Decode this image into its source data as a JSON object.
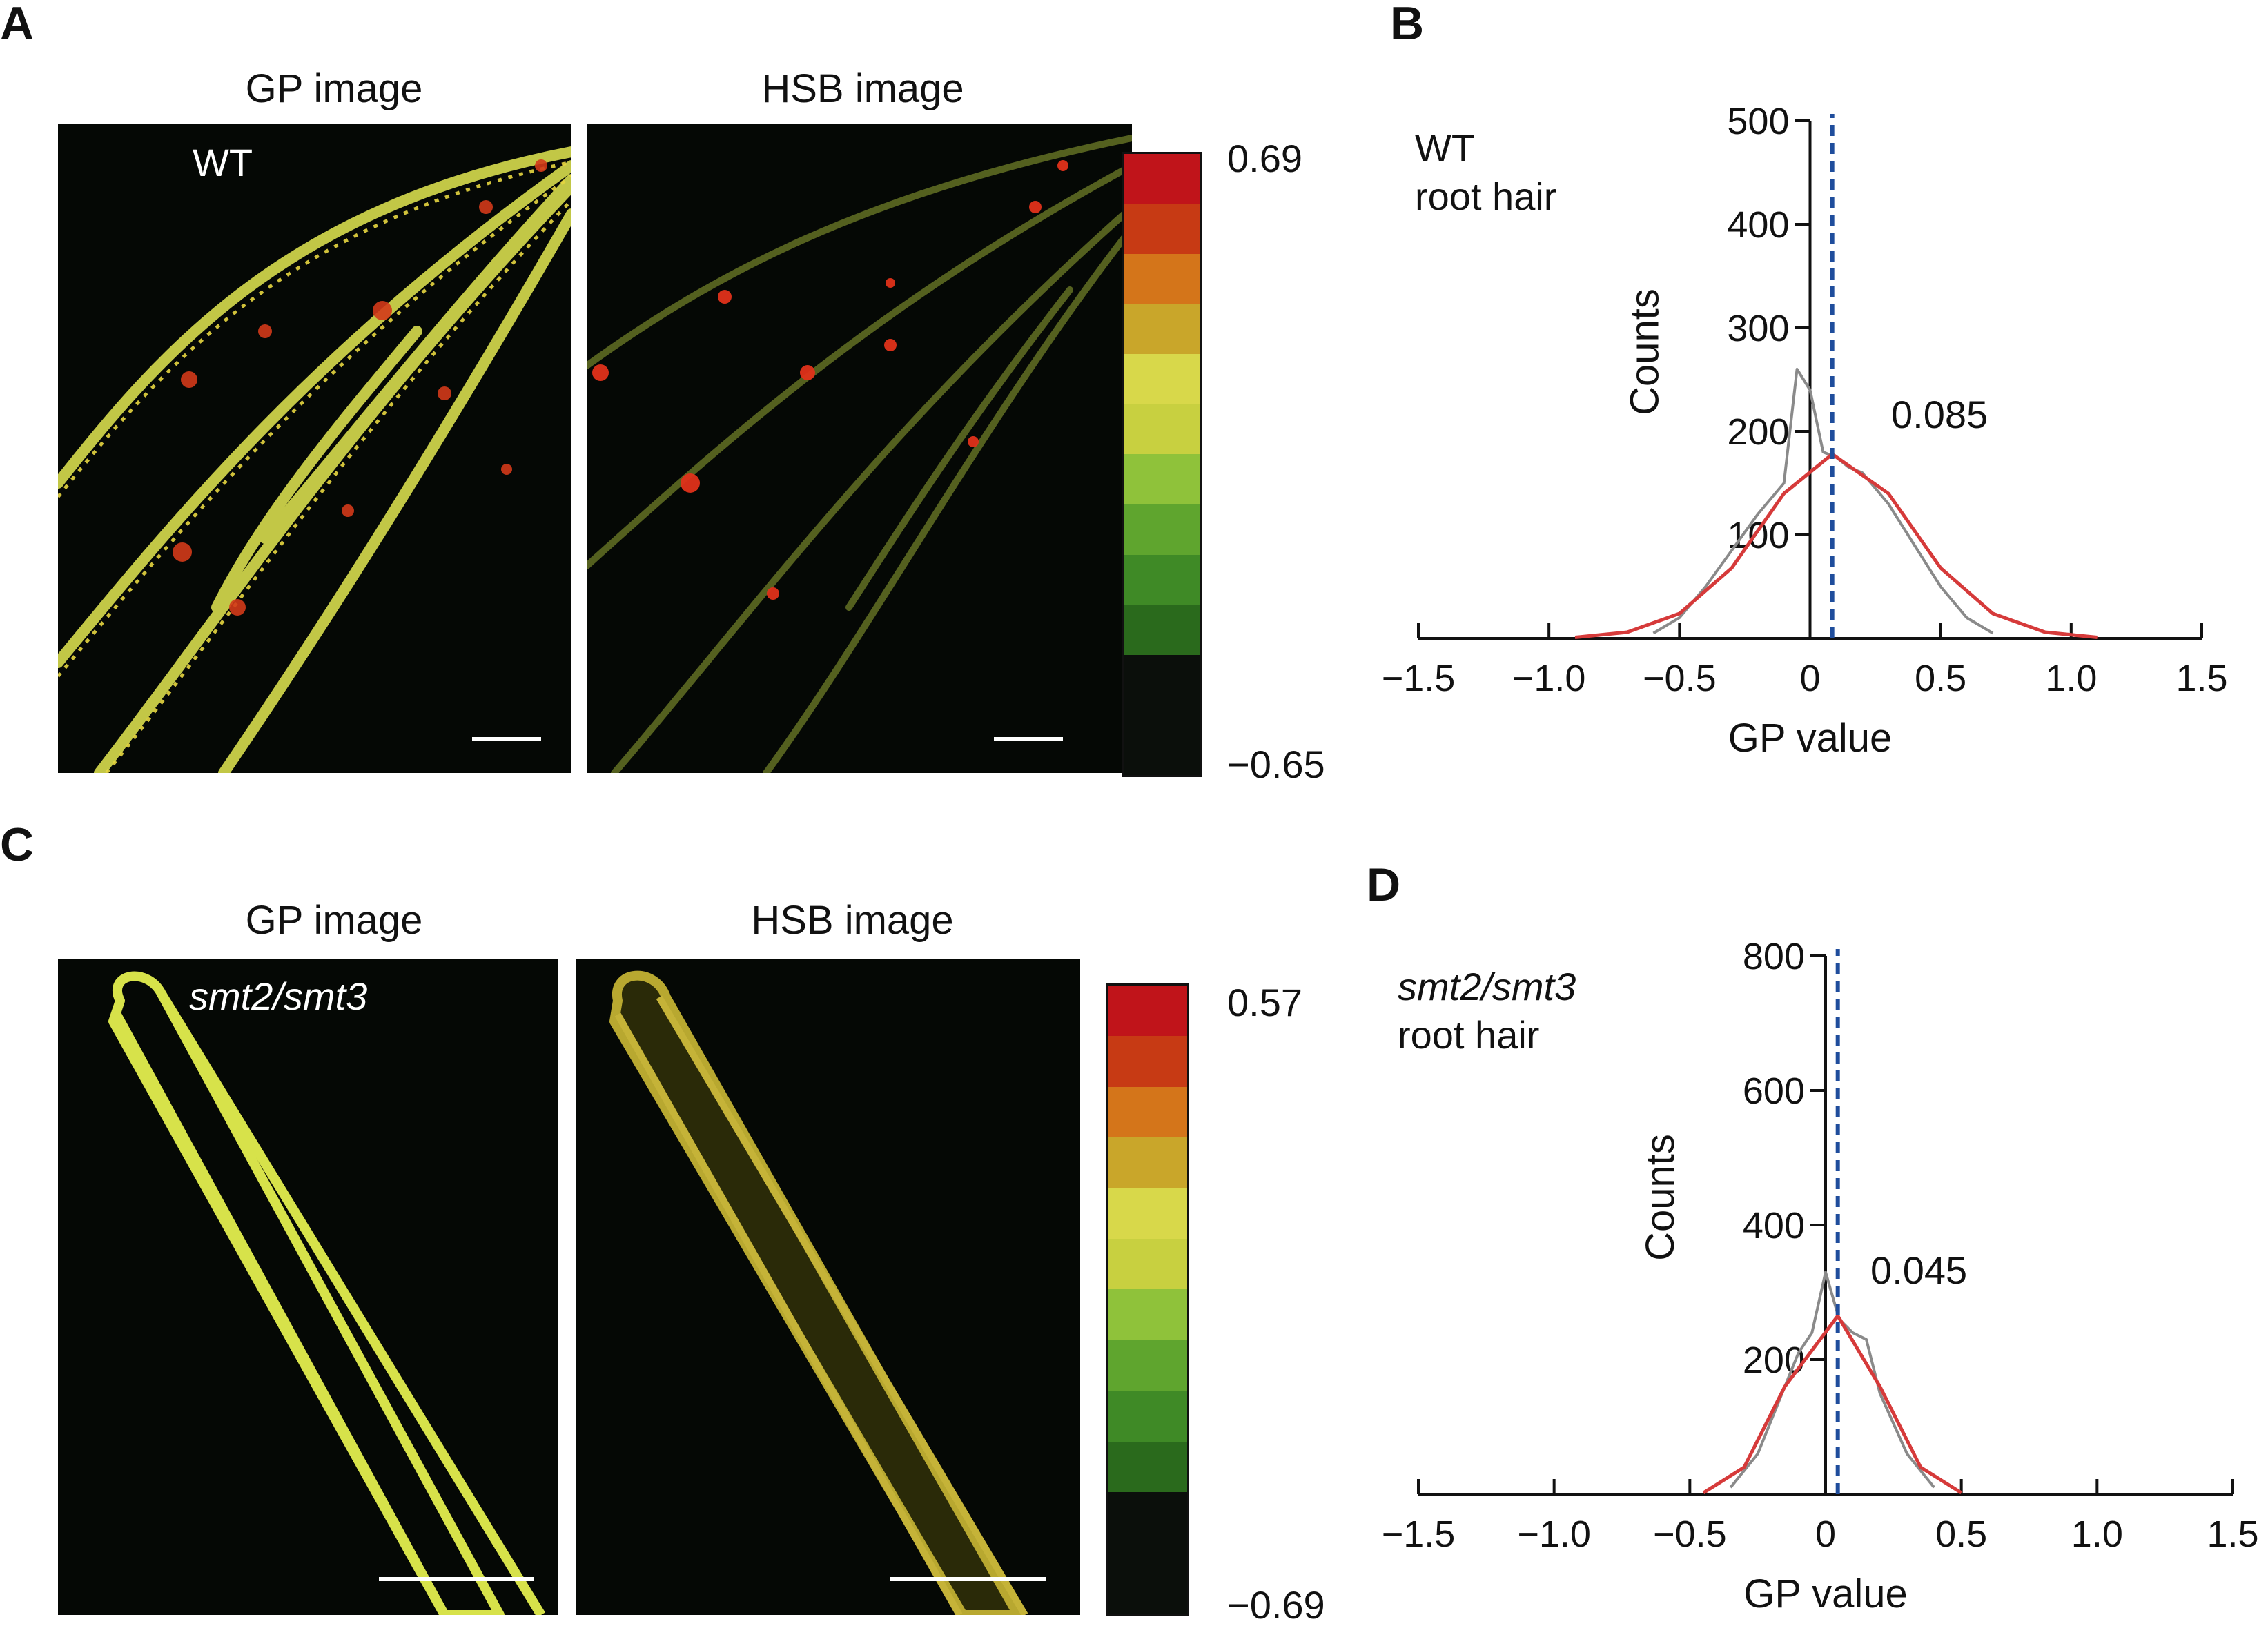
{
  "panels": {
    "A": {
      "letter": "A",
      "gp_title": "GP image",
      "hsb_title": "HSB image",
      "genotype": "WT",
      "colorbar_max": "0.69",
      "colorbar_min": "−0.65"
    },
    "B": {
      "letter": "B",
      "sample_line1": "WT",
      "sample_line2": "root hair",
      "peak_label": "0.085"
    },
    "C": {
      "letter": "C",
      "gp_title": "GP image",
      "hsb_title": "HSB image",
      "genotype": "smt2/smt3",
      "colorbar_max": "0.57",
      "colorbar_min": "−0.69"
    },
    "D": {
      "letter": "D",
      "sample_line1": "smt2/smt3",
      "sample_line2": "root hair",
      "peak_label": "0.045"
    }
  },
  "colorbar_colors": [
    "#c0141a",
    "#c73a14",
    "#d4751a",
    "#c9a62a",
    "#d8d84a",
    "#c8d040",
    "#8fc23a",
    "#5fa52e",
    "#3f8a26",
    "#2a6a1c",
    "#0b0f0b"
  ],
  "chart_data": [
    {
      "id": "B",
      "type": "line",
      "title": "",
      "xlabel": "GP value",
      "ylabel": "Counts",
      "xlim": [
        -1.5,
        1.5
      ],
      "ylim": [
        0,
        500
      ],
      "xticks": [
        "−1.5",
        "−1.0",
        "−0.5",
        "0",
        "0.5",
        "1.0",
        "1.5"
      ],
      "yticks": [
        "100",
        "200",
        "300",
        "400",
        "500"
      ],
      "mean_line": 0.085,
      "series": [
        {
          "color": "#8a8a8a",
          "style": "histogram",
          "x": [
            -0.6,
            -0.5,
            -0.4,
            -0.3,
            -0.2,
            -0.1,
            -0.05,
            0,
            0.05,
            0.1,
            0.15,
            0.2,
            0.3,
            0.4,
            0.5,
            0.6,
            0.7
          ],
          "y": [
            5,
            20,
            50,
            85,
            120,
            150,
            260,
            240,
            180,
            175,
            165,
            160,
            130,
            90,
            50,
            20,
            5
          ]
        },
        {
          "color": "#d63a3a",
          "style": "fit",
          "x": [
            -0.9,
            -0.7,
            -0.5,
            -0.3,
            -0.1,
            0.085,
            0.3,
            0.5,
            0.7,
            0.9,
            1.1
          ],
          "y": [
            1,
            6,
            24,
            68,
            140,
            178,
            140,
            68,
            24,
            6,
            1
          ]
        }
      ]
    },
    {
      "id": "D",
      "type": "line",
      "title": "",
      "xlabel": "GP value",
      "ylabel": "Counts",
      "xlim": [
        -1.5,
        1.5
      ],
      "ylim": [
        0,
        800
      ],
      "xticks": [
        "−1.5",
        "−1.0",
        "−0.5",
        "0",
        "0.5",
        "1.0",
        "1.5"
      ],
      "yticks": [
        "200",
        "400",
        "600",
        "800"
      ],
      "mean_line": 0.045,
      "series": [
        {
          "color": "#8a8a8a",
          "style": "histogram",
          "x": [
            -0.35,
            -0.25,
            -0.15,
            -0.1,
            -0.05,
            0,
            0.05,
            0.1,
            0.15,
            0.2,
            0.3,
            0.4
          ],
          "y": [
            10,
            60,
            160,
            210,
            240,
            330,
            260,
            240,
            230,
            150,
            60,
            10
          ]
        },
        {
          "color": "#d63a3a",
          "style": "fit",
          "x": [
            -0.45,
            -0.3,
            -0.15,
            0.045,
            0.2,
            0.35,
            0.5
          ],
          "y": [
            2,
            40,
            160,
            265,
            160,
            40,
            2
          ]
        }
      ]
    }
  ]
}
